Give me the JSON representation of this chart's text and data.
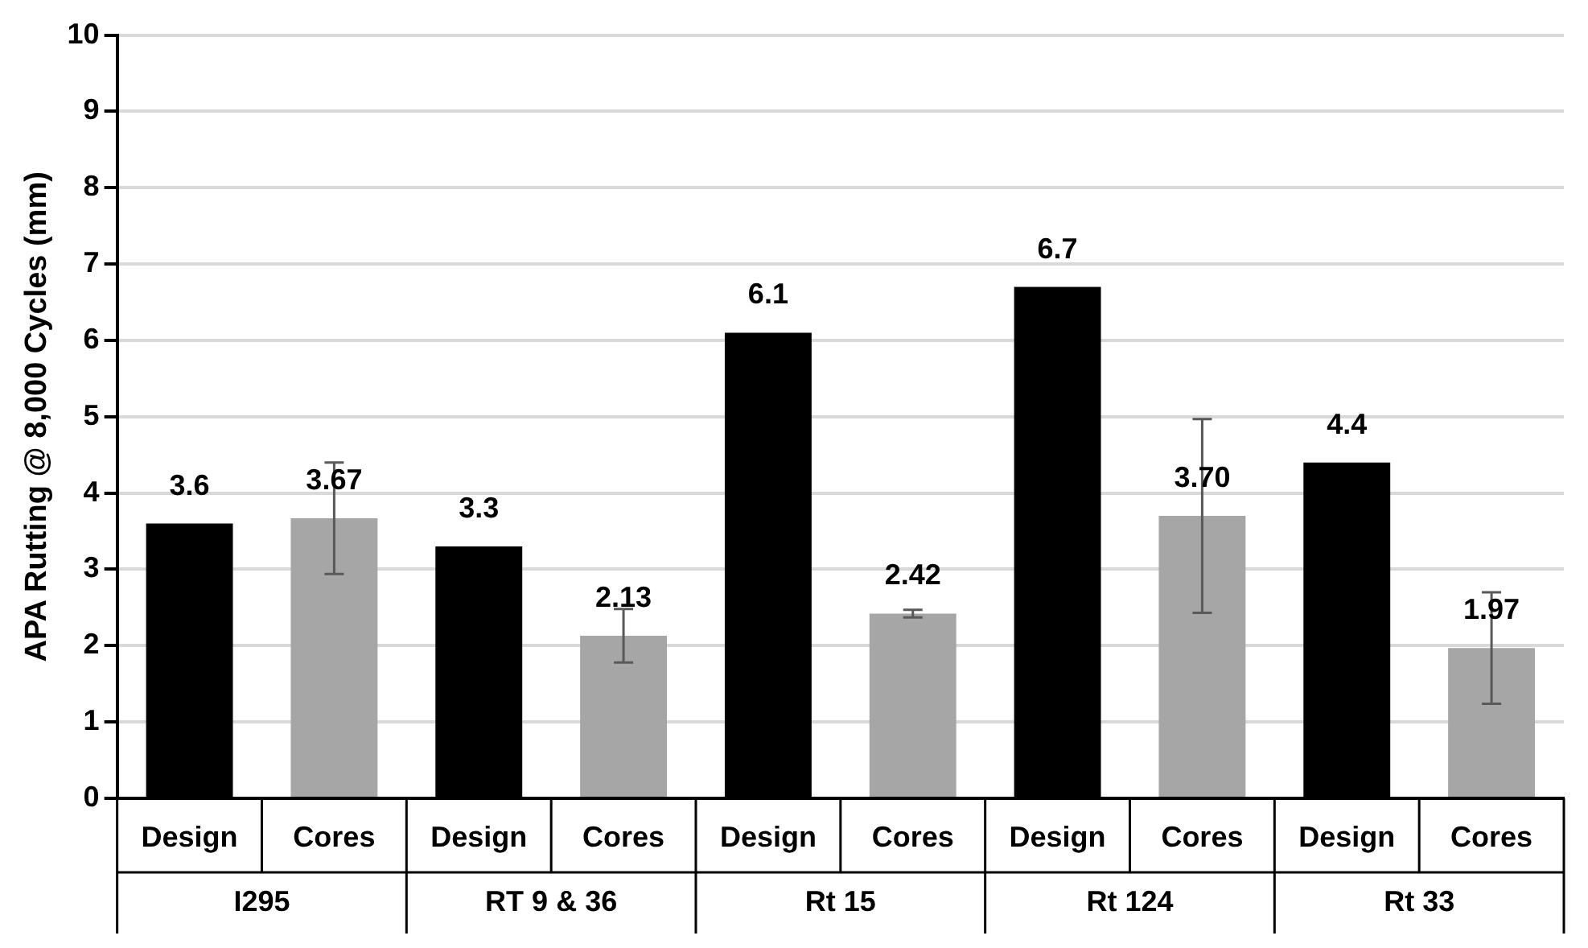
{
  "chart_data": {
    "type": "bar",
    "ylabel": "APA Rutting @ 8,000 Cycles (mm)",
    "categories": [
      "Design",
      "Cores",
      "Design",
      "Cores",
      "Design",
      "Cores",
      "Design",
      "Cores",
      "Design",
      "Cores"
    ],
    "values": [
      3.6,
      3.67,
      3.3,
      2.13,
      6.1,
      2.42,
      6.7,
      3.7,
      4.4,
      1.97
    ],
    "colors": [
      "#000000",
      "#a6a6a6",
      "#000000",
      "#a6a6a6",
      "#000000",
      "#a6a6a6",
      "#000000",
      "#a6a6a6",
      "#000000",
      "#a6a6a6"
    ],
    "errors": [
      null,
      0.73,
      null,
      0.35,
      null,
      0.05,
      null,
      1.27,
      null,
      0.73
    ],
    "value_labels": [
      "3.6",
      "3.67",
      "3.3",
      "2.13",
      "6.1",
      "2.42",
      "6.7",
      "3.70",
      "4.4",
      "1.97"
    ],
    "annotations": [
      "I295",
      "RT 9 & 36",
      "Rt 15",
      "Rt 124",
      "Rt 33"
    ],
    "ylim": [
      0,
      10
    ],
    "yticks": [
      0,
      1,
      2,
      3,
      4,
      5,
      6,
      7,
      8,
      9,
      10
    ],
    "grid": "y",
    "legend": false
  }
}
